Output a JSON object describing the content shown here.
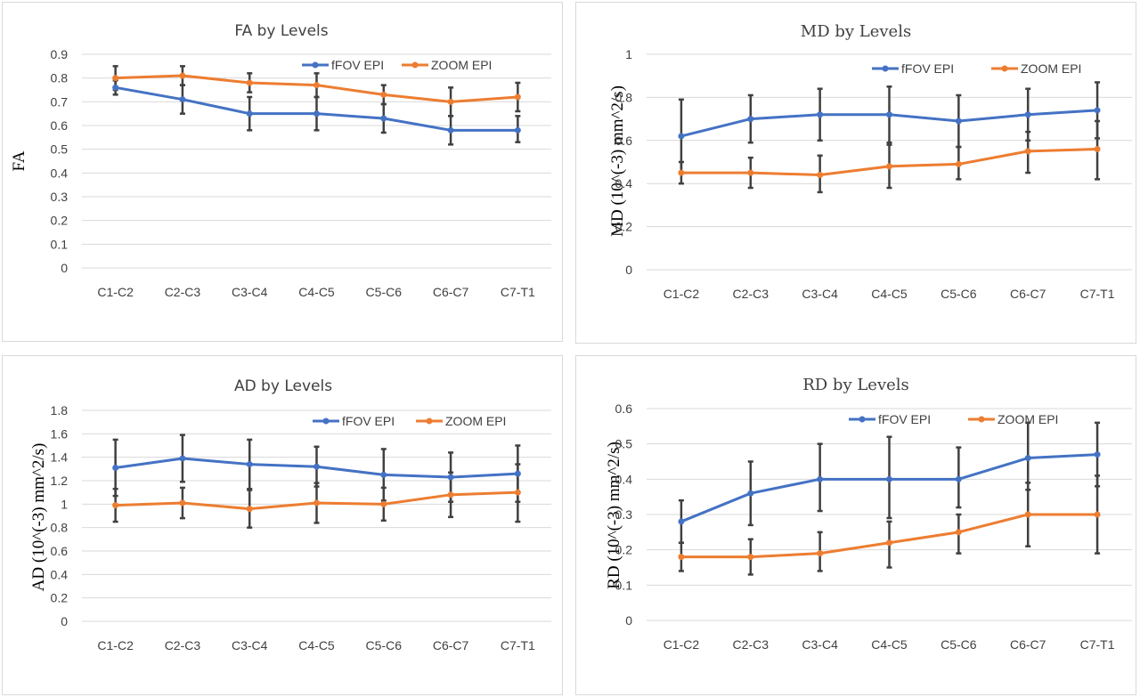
{
  "chart_data": [
    {
      "type": "line",
      "title": "FA by Levels",
      "ylabel": "FA",
      "xlabel": "",
      "categories": [
        "C1-C2",
        "C2-C3",
        "C3-C4",
        "C4-C5",
        "C5-C6",
        "C6-C7",
        "C7-T1"
      ],
      "ylim": [
        0,
        0.9
      ],
      "yticks": [
        "0",
        "0.1",
        "0.2",
        "0.3",
        "0.4",
        "0.5",
        "0.6",
        "0.7",
        "0.8",
        "0.9"
      ],
      "grid": true,
      "legend_position": "top-right",
      "series": [
        {
          "name": "fFOV EPI",
          "color": "#4472c4",
          "values": [
            0.76,
            0.71,
            0.65,
            0.65,
            0.63,
            0.58,
            0.58
          ],
          "error_high": [
            0.79,
            0.77,
            0.72,
            0.72,
            0.69,
            0.64,
            0.64
          ],
          "error_low": [
            0.73,
            0.65,
            0.58,
            0.58,
            0.57,
            0.52,
            0.53
          ]
        },
        {
          "name": "ZOOM EPI",
          "color": "#ed7d31",
          "values": [
            0.8,
            0.81,
            0.78,
            0.77,
            0.73,
            0.7,
            0.72
          ],
          "error_high": [
            0.85,
            0.85,
            0.82,
            0.82,
            0.77,
            0.76,
            0.78
          ],
          "error_low": [
            0.75,
            0.77,
            0.74,
            0.72,
            0.69,
            0.64,
            0.66
          ]
        }
      ]
    },
    {
      "type": "line",
      "title": "MD by Levels",
      "ylabel": "MD (10^(-3) mm^2/s)",
      "xlabel": "",
      "categories": [
        "C1-C2",
        "C2-C3",
        "C3-C4",
        "C4-C5",
        "C5-C6",
        "C6-C7",
        "C7-T1"
      ],
      "ylim": [
        0,
        1
      ],
      "yticks": [
        "0",
        "0.2",
        "0.4",
        "0.6",
        "0.8",
        "1"
      ],
      "grid": true,
      "legend_position": "top-right",
      "series": [
        {
          "name": "fFOV EPI",
          "color": "#4472c4",
          "values": [
            0.62,
            0.7,
            0.72,
            0.72,
            0.69,
            0.72,
            0.74
          ],
          "error_high": [
            0.79,
            0.81,
            0.84,
            0.85,
            0.81,
            0.84,
            0.87
          ],
          "error_low": [
            0.45,
            0.59,
            0.6,
            0.59,
            0.57,
            0.6,
            0.61
          ]
        },
        {
          "name": "ZOOM EPI",
          "color": "#ed7d31",
          "values": [
            0.45,
            0.45,
            0.44,
            0.48,
            0.49,
            0.55,
            0.56
          ],
          "error_high": [
            0.5,
            0.52,
            0.53,
            0.58,
            0.57,
            0.64,
            0.69
          ],
          "error_low": [
            0.4,
            0.38,
            0.36,
            0.38,
            0.42,
            0.45,
            0.42
          ]
        }
      ]
    },
    {
      "type": "line",
      "title": "AD by Levels",
      "ylabel": "AD (10^(-3) mm^2/s)",
      "xlabel": "",
      "categories": [
        "C1-C2",
        "C2-C3",
        "C3-C4",
        "C4-C5",
        "C5-C6",
        "C6-C7",
        "C7-T1"
      ],
      "ylim": [
        0,
        1.8
      ],
      "yticks": [
        "0",
        "0.2",
        "0.4",
        "0.6",
        "0.8",
        "1",
        "1.2",
        "1.4",
        "1.6",
        "1.8"
      ],
      "grid": true,
      "legend_position": "top-right",
      "series": [
        {
          "name": "fFOV EPI",
          "color": "#4472c4",
          "values": [
            1.31,
            1.39,
            1.34,
            1.32,
            1.25,
            1.23,
            1.26
          ],
          "error_high": [
            1.55,
            1.59,
            1.55,
            1.49,
            1.47,
            1.44,
            1.5
          ],
          "error_low": [
            1.07,
            1.19,
            1.13,
            1.15,
            1.03,
            1.02,
            1.02
          ]
        },
        {
          "name": "ZOOM EPI",
          "color": "#ed7d31",
          "values": [
            0.99,
            1.01,
            0.96,
            1.01,
            1.0,
            1.08,
            1.1
          ],
          "error_high": [
            1.13,
            1.14,
            1.12,
            1.18,
            1.14,
            1.27,
            1.34
          ],
          "error_low": [
            0.85,
            0.88,
            0.8,
            0.84,
            0.86,
            0.89,
            0.85
          ]
        }
      ]
    },
    {
      "type": "line",
      "title": "RD by Levels",
      "ylabel": "RD (10^(-3) mm^2/s)",
      "xlabel": "",
      "categories": [
        "C1-C2",
        "C2-C3",
        "C3-C4",
        "C4-C5",
        "C5-C6",
        "C6-C7",
        "C7-T1"
      ],
      "ylim": [
        0,
        0.6
      ],
      "yticks": [
        "0",
        "0.1",
        "0.2",
        "0.3",
        "0.4",
        "0.5",
        "0.6"
      ],
      "grid": true,
      "legend_position": "top-right",
      "series": [
        {
          "name": "fFOV EPI",
          "color": "#4472c4",
          "values": [
            0.28,
            0.36,
            0.4,
            0.4,
            0.4,
            0.46,
            0.47
          ],
          "error_high": [
            0.34,
            0.45,
            0.5,
            0.52,
            0.49,
            0.56,
            0.56
          ],
          "error_low": [
            0.22,
            0.27,
            0.31,
            0.29,
            0.32,
            0.37,
            0.38
          ]
        },
        {
          "name": "ZOOM EPI",
          "color": "#ed7d31",
          "values": [
            0.18,
            0.18,
            0.19,
            0.22,
            0.25,
            0.3,
            0.3
          ],
          "error_high": [
            0.22,
            0.23,
            0.25,
            0.28,
            0.3,
            0.39,
            0.41
          ],
          "error_low": [
            0.14,
            0.13,
            0.14,
            0.15,
            0.19,
            0.21,
            0.19
          ]
        }
      ]
    }
  ]
}
